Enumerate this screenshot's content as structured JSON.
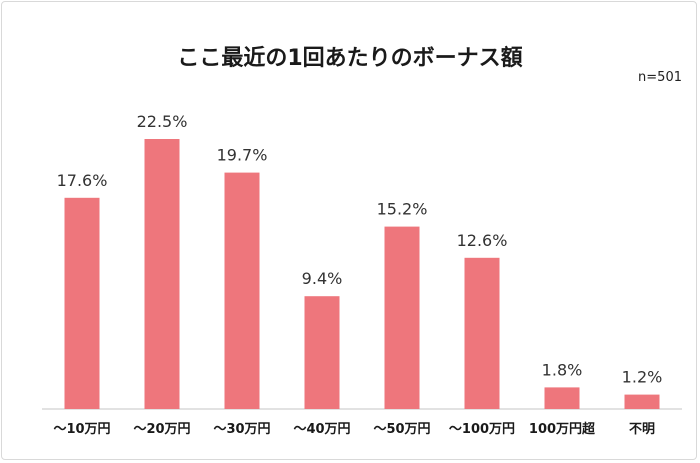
{
  "chart_data": {
    "type": "bar",
    "title": "ここ最近の1回あたりのボーナス額",
    "sample_size": "n=501",
    "categories": [
      "～10万円",
      "～20万円",
      "～30万円",
      "～40万円",
      "～50万円",
      "～100万円",
      "100万円超",
      "不明"
    ],
    "values": [
      17.6,
      22.5,
      19.7,
      9.4,
      15.2,
      12.6,
      1.8,
      1.2
    ],
    "value_labels": [
      "17.6%",
      "22.5%",
      "19.7%",
      "9.4%",
      "15.2%",
      "12.6%",
      "1.8%",
      "1.2%"
    ],
    "ylim": [
      0,
      25
    ],
    "grid": false,
    "bar_color": "#ee767c",
    "axis_color": "#d9d9d9"
  }
}
